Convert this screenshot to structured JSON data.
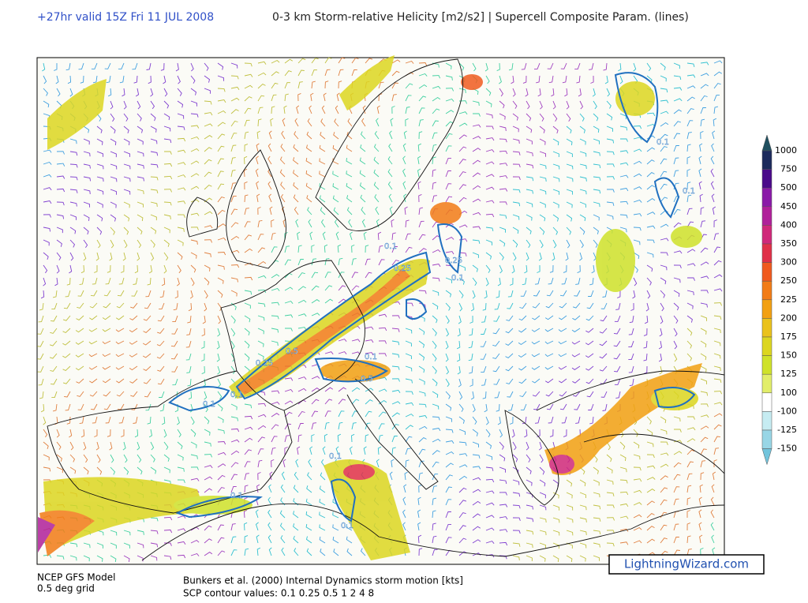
{
  "header": {
    "forecast": "+27hr valid 15Z Fri 11 JUL 2008",
    "title": "0-3 km Storm-relative Helicity [m2/s2] | Supercell Composite Param. (lines)"
  },
  "legend": {
    "labels": [
      1000,
      750,
      500,
      450,
      400,
      350,
      300,
      250,
      225,
      200,
      175,
      150,
      125,
      100,
      -100,
      -125,
      -150
    ],
    "colors": [
      "#1f4f5f",
      "#1c2a5c",
      "#4a0a8a",
      "#8a1aa8",
      "#b0209a",
      "#d0287a",
      "#e03048",
      "#f05a1e",
      "#f27c16",
      "#f2a012",
      "#eac21c",
      "#dcd620",
      "#cfe22a",
      "#e2ee6a",
      "#ffffff",
      "#c6ecf2",
      "#98d6e6",
      "#72c4dc"
    ]
  },
  "contour_labels": [
    "0.1",
    "0.25",
    "0.1",
    "0.5",
    "0.1",
    "0.25",
    "0.1",
    "0.1",
    "0.5",
    "0.1",
    "0.1",
    "0.1",
    "0.1",
    "0.1",
    "0.25"
  ],
  "footer": {
    "model": "NCEP GFS Model",
    "grid": "0.5 deg grid",
    "motion": "Bunkers et al. (2000) Internal Dynamics storm motion [kts]",
    "contours": "SCP contour values: 0.1 0.25 0.5 1 2 4 8"
  },
  "watermark": "LightningWizard.com"
}
